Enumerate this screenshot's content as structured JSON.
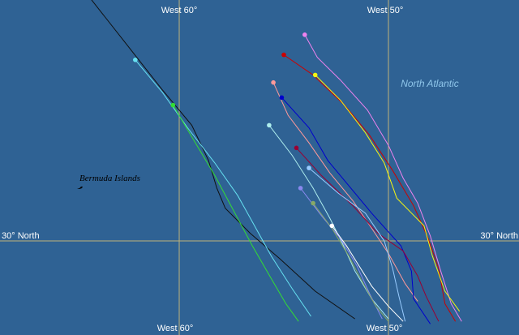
{
  "labels": {
    "west60_top": "West 60°",
    "west50_top": "West 50°",
    "west60_bottom": "West 60°",
    "west50_bottom": "West 50°",
    "north30_left": "30° North",
    "north30_right": "30° North",
    "ocean": "North Atlantic",
    "islands": "Bermuda Islands"
  },
  "colors": {
    "ocean": "#2f6294",
    "gridline": "#bfb27a",
    "ocean_label": "#8fc6ea"
  },
  "tracks": [
    {
      "color": "#111111",
      "start": [
        -64.3,
        39.7
      ],
      "pts": [
        [
          -64.3,
          39.7
        ],
        [
          -62.5,
          37.8
        ],
        [
          -60.8,
          36.0
        ],
        [
          -59.4,
          34.6
        ],
        [
          -58.6,
          33.2
        ],
        [
          -58.2,
          32.1
        ],
        [
          -57.8,
          31.3
        ],
        [
          -56.6,
          30.3
        ],
        [
          -55.2,
          29.3
        ],
        [
          -53.5,
          28.0
        ],
        [
          -51.6,
          26.9
        ]
      ]
    },
    {
      "color": "#66e0f0",
      "start": [
        -62.1,
        37.2
      ],
      "pts": [
        [
          -62.1,
          37.2
        ],
        [
          -60.8,
          35.9
        ],
        [
          -59.6,
          34.5
        ],
        [
          -58.3,
          33.1
        ],
        [
          -57.2,
          31.8
        ],
        [
          -56.4,
          30.6
        ],
        [
          -55.6,
          29.4
        ],
        [
          -54.6,
          28.1
        ],
        [
          -53.7,
          27.0
        ]
      ]
    },
    {
      "color": "#33dd33",
      "start": [
        -60.3,
        35.4
      ],
      "pts": [
        [
          -60.3,
          35.4
        ],
        [
          -59.3,
          34.0
        ],
        [
          -58.3,
          32.6
        ],
        [
          -57.4,
          31.2
        ],
        [
          -56.5,
          29.8
        ],
        [
          -55.6,
          28.5
        ],
        [
          -54.9,
          27.5
        ],
        [
          -54.3,
          26.8
        ]
      ]
    },
    {
      "color": "#ee82ee",
      "start": [
        -54.0,
        38.2
      ],
      "pts": [
        [
          -54.0,
          38.2
        ],
        [
          -53.4,
          37.3
        ],
        [
          -52.3,
          36.4
        ],
        [
          -51.0,
          35.2
        ],
        [
          -50.0,
          33.8
        ],
        [
          -49.3,
          32.5
        ],
        [
          -48.6,
          31.5
        ],
        [
          -48.0,
          30.2
        ],
        [
          -47.5,
          28.8
        ],
        [
          -47.0,
          27.5
        ],
        [
          -46.5,
          26.8
        ]
      ]
    },
    {
      "color": "#cc0000",
      "start": [
        -55.0,
        37.4
      ],
      "pts": [
        [
          -55.0,
          37.4
        ],
        [
          -53.6,
          36.6
        ],
        [
          -52.1,
          35.4
        ],
        [
          -50.9,
          34.2
        ],
        [
          -49.8,
          32.8
        ],
        [
          -48.8,
          31.4
        ],
        [
          -48.1,
          30.1
        ],
        [
          -47.6,
          28.9
        ],
        [
          -47.3,
          27.5
        ],
        [
          -46.8,
          26.8
        ]
      ]
    },
    {
      "color": "#f5f511",
      "start": [
        -53.5,
        36.6
      ],
      "pts": [
        [
          -53.5,
          36.6
        ],
        [
          -52.3,
          35.6
        ],
        [
          -51.1,
          34.3
        ],
        [
          -50.2,
          33.1
        ],
        [
          -49.6,
          31.7
        ],
        [
          -48.3,
          30.6
        ],
        [
          -47.9,
          29.4
        ],
        [
          -47.3,
          28.0
        ],
        [
          -46.6,
          27.2
        ]
      ]
    },
    {
      "color": "#ff9999",
      "start": [
        -55.5,
        36.3
      ],
      "pts": [
        [
          -55.5,
          36.3
        ],
        [
          -54.8,
          35.0
        ],
        [
          -53.8,
          33.9
        ],
        [
          -52.8,
          32.7
        ],
        [
          -51.7,
          31.6
        ],
        [
          -50.8,
          30.5
        ],
        [
          -50.0,
          29.5
        ],
        [
          -49.2,
          28.3
        ],
        [
          -48.6,
          27.6
        ]
      ]
    },
    {
      "color": "#0000cc",
      "start": [
        -55.1,
        35.7
      ],
      "pts": [
        [
          -55.1,
          35.7
        ],
        [
          -53.8,
          34.5
        ],
        [
          -52.9,
          33.2
        ],
        [
          -51.9,
          32.2
        ],
        [
          -50.8,
          31.1
        ],
        [
          -49.4,
          29.8
        ],
        [
          -48.9,
          28.8
        ],
        [
          -48.8,
          27.7
        ],
        [
          -48.0,
          26.7
        ]
      ]
    },
    {
      "color": "#990033",
      "start": [
        -54.4,
        33.7
      ],
      "pts": [
        [
          -54.4,
          33.7
        ],
        [
          -53.2,
          32.6
        ],
        [
          -51.7,
          31.4
        ],
        [
          -50.5,
          30.3
        ],
        [
          -49.3,
          29.6
        ],
        [
          -48.6,
          28.6
        ],
        [
          -48.2,
          27.8
        ],
        [
          -47.6,
          26.8
        ]
      ]
    },
    {
      "color": "#aeeeee",
      "start": [
        -55.7,
        34.6
      ],
      "pts": [
        [
          -55.7,
          34.6
        ],
        [
          -54.6,
          33.4
        ],
        [
          -53.6,
          32.1
        ],
        [
          -52.8,
          30.9
        ],
        [
          -52.2,
          29.9
        ],
        [
          -51.6,
          28.8
        ],
        [
          -50.8,
          27.7
        ],
        [
          -50.0,
          26.9
        ]
      ]
    },
    {
      "color": "#99ccff",
      "start": [
        -53.8,
        32.9
      ],
      "pts": [
        [
          -53.8,
          32.9
        ],
        [
          -52.4,
          31.9
        ],
        [
          -51.1,
          31.1
        ],
        [
          -50.2,
          30.0
        ],
        [
          -49.8,
          28.9
        ],
        [
          -49.5,
          27.8
        ],
        [
          -49.2,
          26.8
        ]
      ]
    },
    {
      "color": "#8888ee",
      "start": [
        -54.2,
        32.1
      ],
      "pts": [
        [
          -54.2,
          32.1
        ],
        [
          -53.2,
          31.0
        ],
        [
          -52.3,
          30.1
        ],
        [
          -51.5,
          29.0
        ],
        [
          -50.9,
          27.9
        ],
        [
          -50.3,
          26.9
        ]
      ]
    },
    {
      "color": "#88aa66",
      "start": [
        -53.6,
        31.5
      ],
      "pts": [
        [
          -53.6,
          31.5
        ],
        [
          -52.7,
          30.5
        ],
        [
          -51.9,
          29.4
        ],
        [
          -51.2,
          28.3
        ],
        [
          -50.6,
          27.4
        ],
        [
          -50.0,
          26.8
        ]
      ]
    },
    {
      "color": "#ffffff",
      "start": [
        -52.7,
        30.6
      ],
      "pts": [
        [
          -52.7,
          30.6
        ],
        [
          -52.0,
          29.8
        ],
        [
          -51.4,
          29.0
        ],
        [
          -50.8,
          28.2
        ],
        [
          -50.0,
          27.4
        ],
        [
          -49.3,
          26.8
        ]
      ]
    }
  ]
}
